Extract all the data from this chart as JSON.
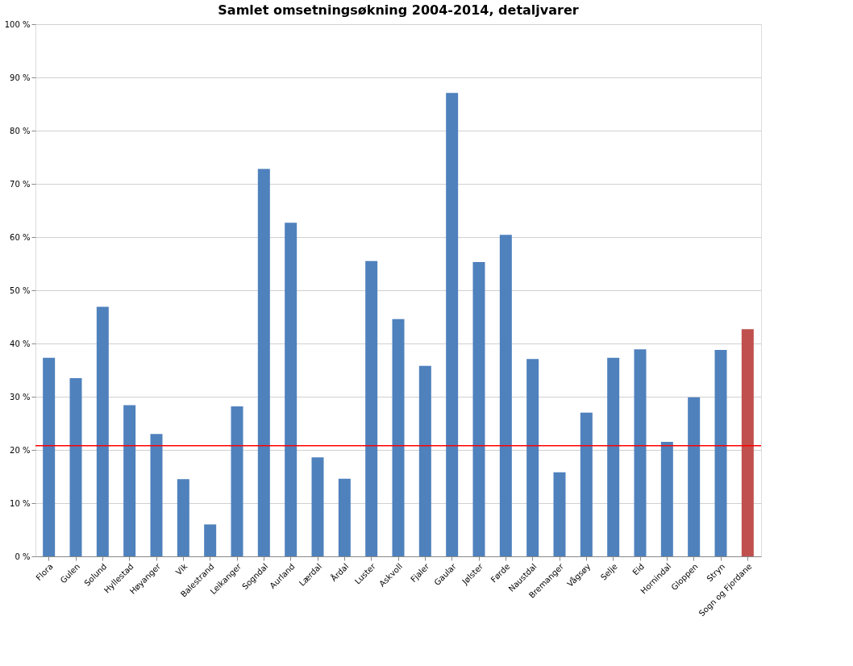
{
  "chart_data": {
    "type": "bar",
    "title": "Samlet omsetningsøkning 2004-2014, detaljvarer",
    "categories": [
      "Flora",
      "Gulen",
      "Solund",
      "Hyllestad",
      "Høyanger",
      "Vik",
      "Balestrand",
      "Leikanger",
      "Sogndal",
      "Aurland",
      "Lærdal",
      "Årdal",
      "Luster",
      "Askvoll",
      "Fjaler",
      "Gaular",
      "Jølster",
      "Førde",
      "Naustdal",
      "Bremanger",
      "Vågsøy",
      "Selje",
      "Eid",
      "Hornindal",
      "Gloppen",
      "Stryn",
      "Sogn og Fjordane"
    ],
    "values": [
      37.3,
      33.5,
      46.9,
      28.4,
      23,
      14.5,
      6,
      28.2,
      72.8,
      62.7,
      18.6,
      14.6,
      55.5,
      44.6,
      35.8,
      87.1,
      55.3,
      60.4,
      37.1,
      15.8,
      27,
      37.3,
      38.9,
      21.5,
      29.9,
      38.8,
      42.7
    ],
    "colors": [
      "#4f81bd",
      "#4f81bd",
      "#4f81bd",
      "#4f81bd",
      "#4f81bd",
      "#4f81bd",
      "#4f81bd",
      "#4f81bd",
      "#4f81bd",
      "#4f81bd",
      "#4f81bd",
      "#4f81bd",
      "#4f81bd",
      "#4f81bd",
      "#4f81bd",
      "#4f81bd",
      "#4f81bd",
      "#4f81bd",
      "#4f81bd",
      "#4f81bd",
      "#4f81bd",
      "#4f81bd",
      "#4f81bd",
      "#4f81bd",
      "#4f81bd",
      "#4f81bd",
      "#c0504d"
    ],
    "ylim": [
      0,
      100
    ],
    "yticks": [
      {
        "value": 0,
        "label": "0 %"
      },
      {
        "value": 10,
        "label": "10 %"
      },
      {
        "value": 20,
        "label": "20 %"
      },
      {
        "value": 30,
        "label": "30 %"
      },
      {
        "value": 40,
        "label": "40 %"
      },
      {
        "value": 50,
        "label": "50 %"
      },
      {
        "value": 60,
        "label": "60 %"
      },
      {
        "value": 70,
        "label": "70 %"
      },
      {
        "value": 80,
        "label": "80 %"
      },
      {
        "value": 90,
        "label": "90 %"
      },
      {
        "value": 100,
        "label": "100 %"
      }
    ],
    "ref_lines": [
      {
        "axis": "y",
        "value": 20.8,
        "color": "#ff0000"
      }
    ],
    "grid": "y"
  }
}
